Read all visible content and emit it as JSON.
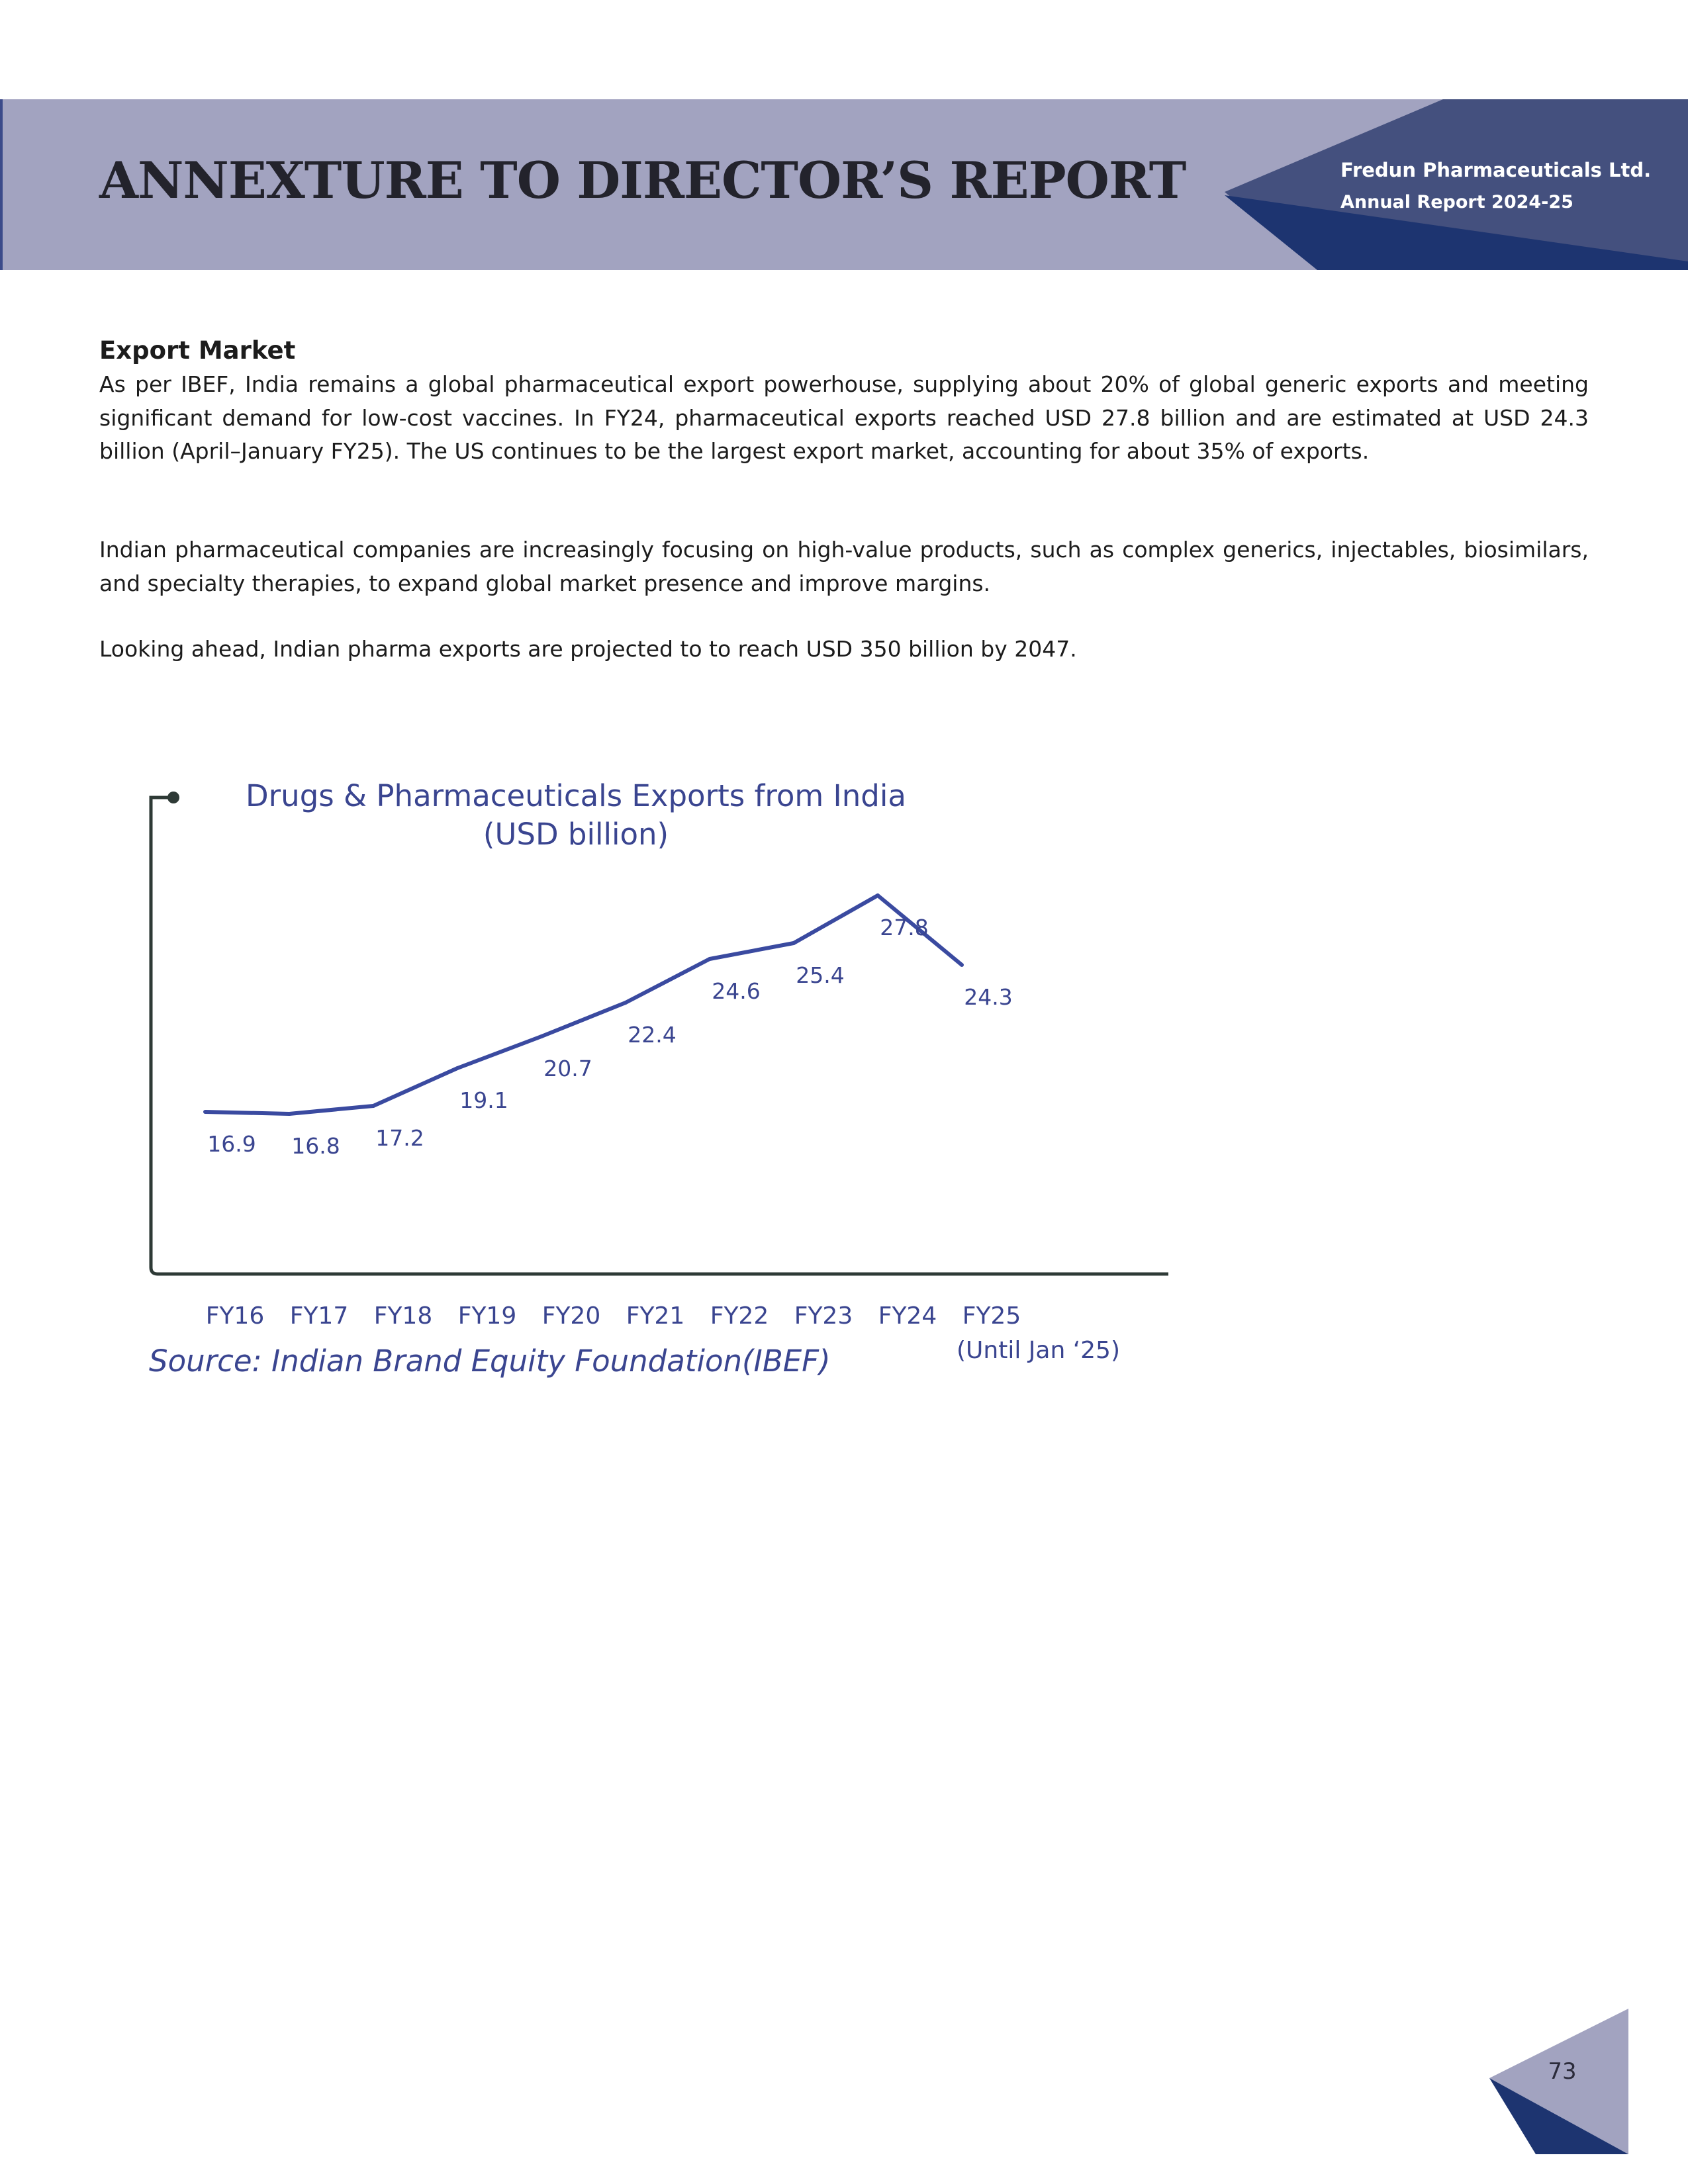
{
  "header": {
    "title": "ANNEXTURE TO DIRECTOR’S REPORT",
    "company": "Fredun Pharmaceuticals Ltd.",
    "report_year": "Annual Report 2024-25"
  },
  "section": {
    "title": "Export Market",
    "paragraphs": [
      "As per IBEF, India remains a global pharmaceutical export powerhouse, supplying about 20% of global generic exports and meeting significant demand for low-cost vaccines. In FY24, pharmaceutical exports reached USD 27.8 billion and are estimated at USD 24.3 billion (April–January FY25). The US continues to be the largest export market, accounting for about 35% of exports.",
      "Indian pharmaceutical companies are increasingly focusing on high-value products, such as complex generics, injectables, biosimilars, and specialty therapies, to expand global market presence and improve margins.",
      "Looking ahead, Indian pharma exports are projected to to reach USD 350 billion by 2047."
    ]
  },
  "chart_data": {
    "type": "line",
    "title": "Drugs & Pharmaceuticals Exports from India",
    "subtitle": "(USD billion)",
    "categories": [
      "FY16",
      "FY17",
      "FY18",
      "FY19",
      "FY20",
      "FY21",
      "FY22",
      "FY23",
      "FY24",
      "FY25"
    ],
    "category_note": "(Until Jan ‘25)",
    "series": [
      {
        "values": [
          16.9,
          16.8,
          17.2,
          19.1,
          20.7,
          22.4,
          24.6,
          25.4,
          27.8,
          24.3
        ]
      }
    ],
    "line_color": "#3a4aa0",
    "axis_color": "#2e3a36",
    "label_color": "#3a4590",
    "source": "Source: Indian Brand Equity Foundation(IBEF)"
  },
  "page": {
    "number": "73"
  },
  "colors": {
    "header_band": "#a2a3c0",
    "header_dark": "#1d3470",
    "header_mid": "#44507e",
    "corner_light": "#a2a3c0"
  }
}
